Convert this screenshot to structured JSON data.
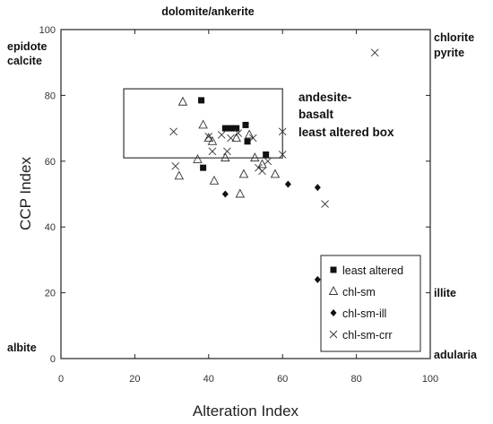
{
  "chart_data": {
    "type": "scatter",
    "xlabel": "Alteration Index",
    "ylabel": "CCP Index",
    "xlim": [
      0,
      100
    ],
    "ylim": [
      0,
      100
    ],
    "x_ticks": [
      "0",
      "20",
      "40",
      "60",
      "80",
      "100"
    ],
    "y_ticks": [
      "0",
      "20",
      "40",
      "60",
      "80",
      "100"
    ],
    "grid": false,
    "legend_position": "bottom-right",
    "corner_labels": {
      "top_center": "dolomite/ankerite",
      "top_left": [
        "epidote",
        "calcite"
      ],
      "top_right": [
        "chlorite",
        "pyrite"
      ],
      "right_middle": "illite",
      "bottom_left": "albite",
      "bottom_right": "adularia"
    },
    "region": {
      "label": [
        "andesite-",
        "basalt",
        "least altered box"
      ],
      "x_range": [
        17,
        60
      ],
      "y_range": [
        61,
        82
      ]
    },
    "series": [
      {
        "name": "least altered",
        "marker": "square",
        "points": [
          [
            38,
            78.5
          ],
          [
            38.5,
            58
          ],
          [
            44.5,
            70
          ],
          [
            46,
            70
          ],
          [
            47.5,
            70
          ],
          [
            50,
            71
          ],
          [
            50.5,
            66
          ],
          [
            55.5,
            62
          ]
        ]
      },
      {
        "name": "chl-sm",
        "marker": "triangle",
        "points": [
          [
            33,
            78
          ],
          [
            32,
            55.5
          ],
          [
            38.5,
            71
          ],
          [
            37,
            60.5
          ],
          [
            40,
            67
          ],
          [
            41,
            66
          ],
          [
            41.5,
            54
          ],
          [
            44.5,
            61
          ],
          [
            47.5,
            67
          ],
          [
            48.5,
            50
          ],
          [
            49.5,
            56
          ],
          [
            52.5,
            61
          ],
          [
            54.5,
            59
          ],
          [
            58,
            56
          ],
          [
            51,
            68
          ]
        ]
      },
      {
        "name": "chl-sm-ill",
        "marker": "diamond",
        "points": [
          [
            44.5,
            50
          ],
          [
            61.5,
            53
          ],
          [
            69.5,
            52
          ],
          [
            69.5,
            24
          ]
        ]
      },
      {
        "name": "chl-sm-crr",
        "marker": "cross",
        "points": [
          [
            31,
            58.5
          ],
          [
            30.5,
            69
          ],
          [
            40,
            67.5
          ],
          [
            41,
            63
          ],
          [
            43.5,
            68
          ],
          [
            45,
            63
          ],
          [
            46,
            67
          ],
          [
            48,
            68.5
          ],
          [
            52,
            67
          ],
          [
            53.5,
            58
          ],
          [
            54.5,
            57
          ],
          [
            56,
            60
          ],
          [
            60,
            69
          ],
          [
            60,
            62
          ],
          [
            71.5,
            47
          ],
          [
            85,
            93
          ]
        ]
      }
    ]
  }
}
